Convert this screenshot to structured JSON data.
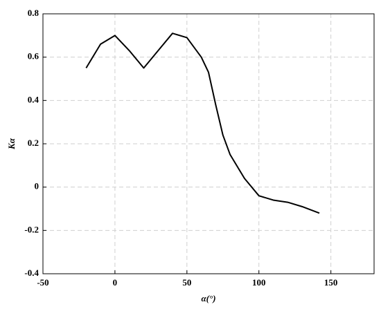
{
  "chart_data": {
    "type": "line",
    "x_label": "α(°)",
    "y_label": "Kα",
    "x": [
      -20,
      -10,
      0,
      10,
      20,
      30,
      40,
      50,
      60,
      65,
      70,
      75,
      80,
      90,
      100,
      110,
      120,
      130,
      142
    ],
    "series": [
      {
        "color": "#000000",
        "values": [
          0.55,
          0.66,
          0.7,
          0.63,
          0.55,
          0.63,
          0.71,
          0.69,
          0.6,
          0.53,
          0.38,
          0.24,
          0.15,
          0.04,
          -0.04,
          -0.06,
          -0.07,
          -0.09,
          -0.12
        ]
      }
    ],
    "xlim": [
      -50,
      180
    ],
    "xticks": [
      -50,
      0,
      50,
      100,
      150
    ],
    "ylim": [
      -0.4,
      0.8
    ],
    "yticks": [
      -0.4,
      -0.2,
      0,
      0.2,
      0.4,
      0.6,
      0.8
    ],
    "grid": true
  }
}
